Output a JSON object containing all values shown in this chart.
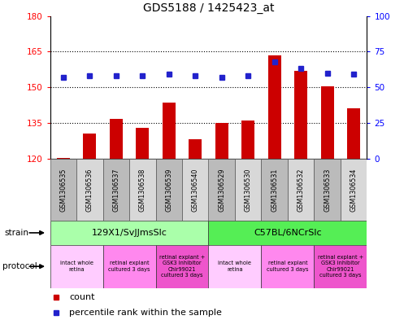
{
  "title": "GDS5188 / 1425423_at",
  "samples": [
    "GSM1306535",
    "GSM1306536",
    "GSM1306537",
    "GSM1306538",
    "GSM1306539",
    "GSM1306540",
    "GSM1306529",
    "GSM1306530",
    "GSM1306531",
    "GSM1306532",
    "GSM1306533",
    "GSM1306534"
  ],
  "counts": [
    120.3,
    130.5,
    136.5,
    133.0,
    143.5,
    128.0,
    135.0,
    136.0,
    163.5,
    157.0,
    150.5,
    141.0
  ],
  "percentiles": [
    57,
    58,
    58,
    58,
    59,
    58,
    57,
    58,
    68,
    63,
    60,
    59
  ],
  "ylim_left": [
    120,
    180
  ],
  "ylim_right": [
    0,
    100
  ],
  "yticks_left": [
    120,
    135,
    150,
    165,
    180
  ],
  "yticks_right": [
    0,
    25,
    50,
    75,
    100
  ],
  "bar_color": "#cc0000",
  "dot_color": "#2222cc",
  "strain_labels": [
    "129X1/SvJJmsSlc",
    "C57BL/6NCrSlc"
  ],
  "strain_light_color": "#aaffaa",
  "strain_dark_color": "#55ee55",
  "strain_ranges": [
    [
      0,
      6
    ],
    [
      6,
      12
    ]
  ],
  "protocol_groups": [
    {
      "label": "intact whole\nretina",
      "range": [
        0,
        2
      ],
      "color": "#ffccff"
    },
    {
      "label": "retinal explant\ncultured 3 days",
      "range": [
        2,
        4
      ],
      "color": "#ff88ee"
    },
    {
      "label": "retinal explant +\nGSK3 inhibitor\nChir99021\ncultured 3 days",
      "range": [
        4,
        6
      ],
      "color": "#ee55cc"
    },
    {
      "label": "intact whole\nretina",
      "range": [
        6,
        8
      ],
      "color": "#ffccff"
    },
    {
      "label": "retinal explant\ncultured 3 days",
      "range": [
        8,
        10
      ],
      "color": "#ff88ee"
    },
    {
      "label": "retinal explant +\nGSK3 inhibitor\nChir99021\ncultured 3 days",
      "range": [
        10,
        12
      ],
      "color": "#ee55cc"
    }
  ]
}
